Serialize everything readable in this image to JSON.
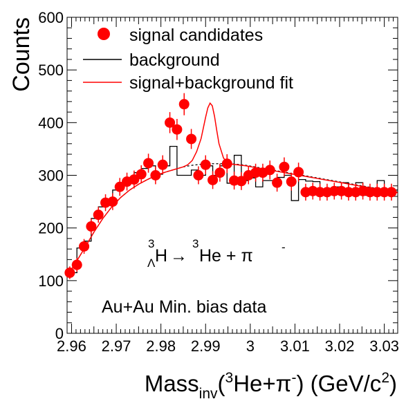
{
  "chart_data": {
    "type": "scatter",
    "xlabel_main": "Mass",
    "xlabel_sub": "inv",
    "xlabel_open": "(",
    "xlabel_sup3": "3",
    "xlabel_mid": "He+π",
    "xlabel_supminus": "-",
    "xlabel_unit": ") (GeV/c",
    "xlabel_sup2": "2",
    "xlabel_close": ")",
    "ylabel": "Counts",
    "xlim": [
      2.959,
      3.033
    ],
    "ylim": [
      0,
      600
    ],
    "x_ticks": [
      "2.96",
      "2.97",
      "2.98",
      "2.99",
      "3",
      "3.01",
      "3.02",
      "3.03"
    ],
    "y_ticks": [
      "0",
      "100",
      "200",
      "300",
      "400",
      "500",
      "600"
    ],
    "legend": {
      "placement": "top-left",
      "signal_label": "signal candidates",
      "background_label": "background",
      "fit_label": "signal+background fit"
    },
    "annotation_decay": {
      "sup_left": "3",
      "sub_left": "Λ",
      "particle": "H",
      "arrow": "→",
      "sup_right": "3",
      "product": "He + π",
      "sup_minus": "-"
    },
    "annotation_data": "Au+Au Min. bias data",
    "colors": {
      "signal": "#ff0000",
      "background": "#000000",
      "fit": "#ff0000",
      "axis": "#000000"
    },
    "signal": {
      "x": [
        2.9596,
        2.9612,
        2.9628,
        2.9644,
        2.966,
        2.9676,
        2.9692,
        2.9708,
        2.9724,
        2.974,
        2.9756,
        2.9772,
        2.9788,
        2.9804,
        2.982,
        2.9836,
        2.9852,
        2.9868,
        2.9884,
        2.99,
        2.9916,
        2.9932,
        2.9948,
        2.9964,
        2.998,
        2.9996,
        3.0012,
        3.0028,
        3.0044,
        3.006,
        3.0076,
        3.0092,
        3.0108,
        3.0124,
        3.014,
        3.0156,
        3.0172,
        3.0188,
        3.0204,
        3.022,
        3.0236,
        3.0252,
        3.0268,
        3.0284,
        3.03,
        3.0316
      ],
      "y": [
        115,
        130,
        165,
        203,
        225,
        248,
        250,
        278,
        288,
        292,
        302,
        323,
        300,
        320,
        400,
        387,
        435,
        369,
        300,
        320,
        291,
        305,
        322,
        290,
        289,
        300,
        305,
        305,
        310,
        286,
        316,
        288,
        306,
        268,
        270,
        268,
        268,
        270,
        270,
        268,
        268,
        270,
        268,
        268,
        268,
        268
      ],
      "err": [
        12,
        13,
        14,
        15,
        15,
        16,
        16,
        17,
        17,
        17,
        17,
        18,
        17,
        18,
        20,
        20,
        21,
        19,
        17,
        18,
        17,
        17,
        18,
        17,
        17,
        17,
        17,
        17,
        18,
        17,
        18,
        17,
        18,
        16,
        16,
        16,
        16,
        16,
        16,
        16,
        16,
        16,
        16,
        16,
        16,
        16
      ]
    },
    "background": {
      "edges": [
        2.9596,
        2.9612,
        2.9628,
        2.9644,
        2.966,
        2.9676,
        2.9692,
        2.9708,
        2.9724,
        2.974,
        2.9756,
        2.9772,
        2.9788,
        2.9804,
        2.982,
        2.9836,
        2.9852,
        2.9868,
        2.9884,
        2.99,
        2.9916,
        2.9932,
        2.9948,
        2.9964,
        2.998,
        2.9996,
        3.0012,
        3.0028,
        3.0044,
        3.006,
        3.0076,
        3.0092,
        3.0108,
        3.0124,
        3.014,
        3.0156,
        3.0172,
        3.0188,
        3.0204,
        3.022,
        3.0236,
        3.0252,
        3.0268,
        3.0284,
        3.03,
        3.0316,
        3.0332
      ],
      "values": [
        115,
        162,
        175,
        218,
        240,
        252,
        272,
        285,
        295,
        305,
        313,
        318,
        302,
        318,
        355,
        300,
        300,
        310,
        300,
        318,
        300,
        318,
        285,
        338,
        290,
        295,
        278,
        290,
        290,
        296,
        300,
        252,
        292,
        289,
        288,
        274,
        268,
        278,
        286,
        271,
        286,
        262,
        265,
        290,
        273,
        272
      ]
    },
    "fit_curve": {
      "x": [
        2.959,
        2.961,
        2.963,
        2.965,
        2.967,
        2.969,
        2.971,
        2.973,
        2.975,
        2.977,
        2.979,
        2.981,
        2.983,
        2.985,
        2.986,
        2.987,
        2.988,
        2.989,
        2.9895,
        2.99,
        2.9905,
        2.991,
        2.9915,
        2.992,
        2.9925,
        2.993,
        2.994,
        2.995,
        2.997,
        2.999,
        3.001,
        3.003,
        3.005,
        3.007,
        3.009,
        3.011,
        3.013,
        3.015,
        3.017,
        3.019,
        3.021,
        3.023,
        3.025,
        3.027,
        3.029,
        3.031,
        3.033
      ],
      "y": [
        108,
        135,
        163,
        192,
        218,
        240,
        258,
        272,
        283,
        292,
        300,
        306,
        311,
        316,
        320,
        328,
        345,
        370,
        390,
        410,
        428,
        437,
        432,
        412,
        385,
        360,
        333,
        322,
        320,
        318,
        315,
        312,
        309,
        306,
        303,
        300,
        297,
        294,
        291,
        288,
        285,
        282,
        279,
        276,
        273,
        270,
        267
      ]
    },
    "bg_curve": {
      "x": [
        2.959,
        2.961,
        2.963,
        2.965,
        2.967,
        2.969,
        2.971,
        2.973,
        2.975,
        2.977,
        2.979,
        2.981,
        2.983,
        2.985,
        2.987,
        2.989,
        2.991,
        2.993,
        2.995,
        2.997,
        2.999,
        3.001,
        3.003,
        3.005,
        3.007,
        3.009,
        3.011,
        3.013,
        3.015,
        3.017,
        3.019,
        3.021,
        3.023,
        3.025,
        3.027,
        3.029,
        3.031,
        3.033
      ],
      "y": [
        108,
        135,
        163,
        192,
        218,
        240,
        258,
        272,
        283,
        292,
        300,
        306,
        311,
        316,
        319,
        321,
        322,
        322,
        322,
        321,
        319,
        316,
        313,
        310,
        307,
        304,
        301,
        298,
        295,
        292,
        289,
        286,
        283,
        280,
        277,
        274,
        271,
        268
      ]
    }
  }
}
